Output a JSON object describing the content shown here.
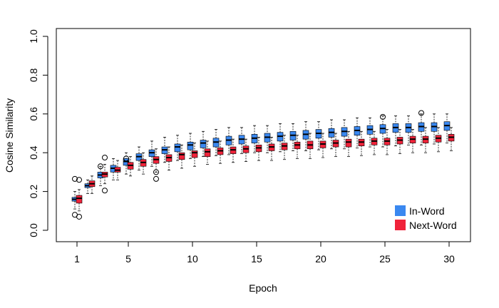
{
  "chart_data": {
    "type": "boxplot",
    "title": "",
    "xlabel": "Epoch",
    "ylabel": "Cosine Similarity",
    "ylim": [
      0.0,
      1.0
    ],
    "y_ticks": [
      "0.0",
      "0.2",
      "0.4",
      "0.6",
      "0.8",
      "1.0"
    ],
    "x_ticks": [
      "1",
      "5",
      "10",
      "15",
      "20",
      "25",
      "30"
    ],
    "grid": false,
    "legend_position": "bottom-right",
    "series": [
      {
        "name": "In-Word",
        "color": "#3a88f0",
        "boxes": [
          [
            0.11,
            0.15,
            0.16,
            0.17,
            0.2
          ],
          [
            0.19,
            0.22,
            0.23,
            0.24,
            0.26
          ],
          [
            0.23,
            0.27,
            0.285,
            0.3,
            0.33
          ],
          [
            0.26,
            0.3,
            0.32,
            0.335,
            0.37
          ],
          [
            0.29,
            0.335,
            0.355,
            0.37,
            0.4
          ],
          [
            0.31,
            0.36,
            0.38,
            0.395,
            0.43
          ],
          [
            0.33,
            0.38,
            0.4,
            0.415,
            0.46
          ],
          [
            0.35,
            0.395,
            0.415,
            0.43,
            0.48
          ],
          [
            0.36,
            0.405,
            0.43,
            0.445,
            0.49
          ],
          [
            0.37,
            0.415,
            0.44,
            0.455,
            0.5
          ],
          [
            0.38,
            0.425,
            0.45,
            0.465,
            0.51
          ],
          [
            0.385,
            0.43,
            0.455,
            0.475,
            0.52
          ],
          [
            0.39,
            0.44,
            0.465,
            0.485,
            0.53
          ],
          [
            0.395,
            0.445,
            0.47,
            0.49,
            0.53
          ],
          [
            0.4,
            0.45,
            0.475,
            0.495,
            0.54
          ],
          [
            0.4,
            0.455,
            0.48,
            0.5,
            0.54
          ],
          [
            0.405,
            0.46,
            0.485,
            0.505,
            0.55
          ],
          [
            0.41,
            0.465,
            0.49,
            0.51,
            0.55
          ],
          [
            0.41,
            0.47,
            0.495,
            0.515,
            0.56
          ],
          [
            0.415,
            0.475,
            0.5,
            0.52,
            0.56
          ],
          [
            0.42,
            0.48,
            0.505,
            0.525,
            0.57
          ],
          [
            0.42,
            0.485,
            0.51,
            0.53,
            0.57
          ],
          [
            0.425,
            0.49,
            0.515,
            0.535,
            0.58
          ],
          [
            0.43,
            0.495,
            0.52,
            0.54,
            0.58
          ],
          [
            0.43,
            0.5,
            0.525,
            0.545,
            0.59
          ],
          [
            0.435,
            0.505,
            0.53,
            0.55,
            0.59
          ],
          [
            0.44,
            0.505,
            0.53,
            0.55,
            0.59
          ],
          [
            0.44,
            0.51,
            0.535,
            0.555,
            0.6
          ],
          [
            0.445,
            0.51,
            0.535,
            0.555,
            0.6
          ],
          [
            0.45,
            0.515,
            0.54,
            0.56,
            0.6
          ]
        ],
        "outliers": [
          [
            1,
            0.08
          ],
          [
            1,
            0.265
          ],
          [
            3,
            0.33
          ],
          [
            5,
            0.37
          ],
          [
            25,
            0.585
          ],
          [
            28,
            0.605
          ]
        ]
      },
      {
        "name": "Next-Word",
        "color": "#f0233a",
        "boxes": [
          [
            0.1,
            0.14,
            0.165,
            0.18,
            0.21
          ],
          [
            0.19,
            0.225,
            0.24,
            0.255,
            0.28
          ],
          [
            0.24,
            0.275,
            0.29,
            0.3,
            0.34
          ],
          [
            0.26,
            0.3,
            0.31,
            0.325,
            0.36
          ],
          [
            0.28,
            0.315,
            0.335,
            0.35,
            0.38
          ],
          [
            0.29,
            0.33,
            0.35,
            0.365,
            0.4
          ],
          [
            0.3,
            0.345,
            0.365,
            0.38,
            0.42
          ],
          [
            0.31,
            0.355,
            0.375,
            0.39,
            0.43
          ],
          [
            0.32,
            0.365,
            0.39,
            0.4,
            0.44
          ],
          [
            0.33,
            0.375,
            0.4,
            0.41,
            0.45
          ],
          [
            0.34,
            0.38,
            0.405,
            0.42,
            0.46
          ],
          [
            0.345,
            0.39,
            0.41,
            0.425,
            0.46
          ],
          [
            0.35,
            0.395,
            0.415,
            0.43,
            0.47
          ],
          [
            0.355,
            0.4,
            0.42,
            0.435,
            0.47
          ],
          [
            0.36,
            0.405,
            0.425,
            0.44,
            0.48
          ],
          [
            0.36,
            0.41,
            0.43,
            0.445,
            0.48
          ],
          [
            0.365,
            0.415,
            0.435,
            0.45,
            0.49
          ],
          [
            0.37,
            0.42,
            0.44,
            0.455,
            0.49
          ],
          [
            0.37,
            0.42,
            0.44,
            0.46,
            0.5
          ],
          [
            0.375,
            0.425,
            0.445,
            0.46,
            0.5
          ],
          [
            0.38,
            0.43,
            0.45,
            0.465,
            0.5
          ],
          [
            0.38,
            0.43,
            0.455,
            0.47,
            0.51
          ],
          [
            0.385,
            0.435,
            0.455,
            0.47,
            0.51
          ],
          [
            0.39,
            0.44,
            0.46,
            0.475,
            0.51
          ],
          [
            0.39,
            0.44,
            0.46,
            0.475,
            0.52
          ],
          [
            0.395,
            0.445,
            0.465,
            0.48,
            0.52
          ],
          [
            0.4,
            0.45,
            0.47,
            0.485,
            0.52
          ],
          [
            0.4,
            0.45,
            0.47,
            0.485,
            0.53
          ],
          [
            0.405,
            0.455,
            0.475,
            0.49,
            0.53
          ],
          [
            0.41,
            0.46,
            0.48,
            0.495,
            0.53
          ]
        ],
        "outliers": [
          [
            1,
            0.07
          ],
          [
            1,
            0.26
          ],
          [
            3,
            0.375
          ],
          [
            3,
            0.205
          ],
          [
            7,
            0.265
          ],
          [
            7,
            0.3
          ]
        ]
      }
    ]
  }
}
